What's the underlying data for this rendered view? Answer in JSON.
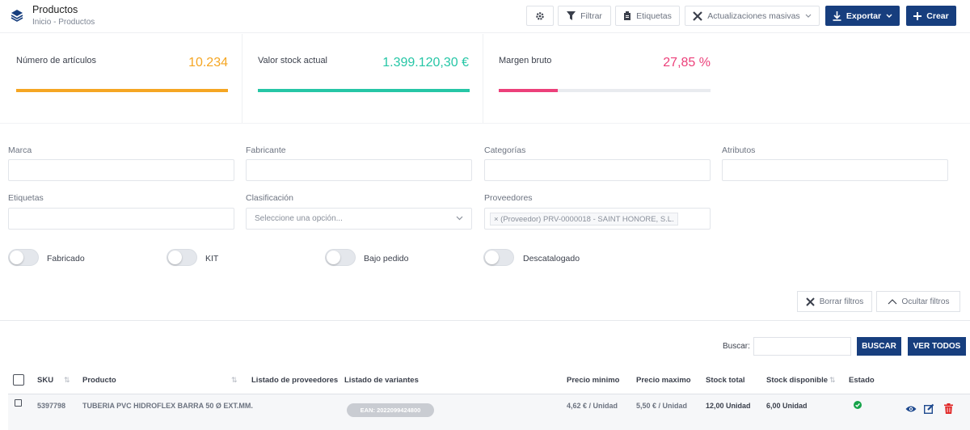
{
  "header": {
    "title": "Productos",
    "breadcrumb": "Inicio - Productos",
    "buttons": {
      "filter": "Filtrar",
      "labels": "Etiquetas",
      "bulk": "Actualizaciones masivas",
      "export": "Exportar",
      "create": "Crear"
    }
  },
  "kpis": [
    {
      "label": "Número de artículos",
      "value": "10.234",
      "color": "#f5a623",
      "fill": 1.0
    },
    {
      "label": "Valor stock actual",
      "value": "1.399.120,30 €",
      "color": "#26c6a6",
      "fill": 1.0
    },
    {
      "label": "Margen bruto",
      "value": "27,85 %",
      "color": "#ec407a",
      "fill": 0.2785
    }
  ],
  "filters": {
    "marca": "Marca",
    "fabricante": "Fabricante",
    "categorias": "Categorías",
    "atributos": "Atributos",
    "etiquetas": "Etiquetas",
    "clasificacion": "Clasificación",
    "clasificacion_placeholder": "Seleccione una opción...",
    "proveedores": "Proveedores",
    "proveedor_tag": "× (Proveedor) PRV-0000018 - SAINT HONORE, S.L."
  },
  "toggles": {
    "fabricado": "Fabricado",
    "kit": "KIT",
    "bajo_pedido": "Bajo pedido",
    "descatalogado": "Descatalogado"
  },
  "filter_actions": {
    "clear": "Borrar filtros",
    "hide": "Ocultar filtros"
  },
  "search": {
    "label": "Buscar:",
    "value": "",
    "search_button": "BUSCAR",
    "view_all_button": "VER TODOS"
  },
  "table": {
    "columns": {
      "sku": "SKU",
      "producto": "Producto",
      "proveedores": "Listado de proveedores",
      "variantes": "Listado de variantes",
      "precio_min": "Precio minimo",
      "precio_max": "Precio maximo",
      "stock_total": "Stock total",
      "stock_disp": "Stock disponible",
      "estado": "Estado"
    },
    "rows": [
      {
        "sku": "5397798",
        "producto": "TUBERIA PVC HIDROFLEX BARRA 50 Ø EXT.MM.",
        "variante": "EAN: 2022099424800",
        "precio_min": "4,62 € / Unidad",
        "precio_max": "5,50 € / Unidad",
        "stock_total": "12,00 Unidad",
        "stock_disp": "6,00 Unidad",
        "estado_icon": "check-circle-icon"
      }
    ]
  },
  "colors": {
    "primary": "#173e7e",
    "success": "#16a34a",
    "danger": "#e02424",
    "action_blue": "#1f4a8f"
  }
}
